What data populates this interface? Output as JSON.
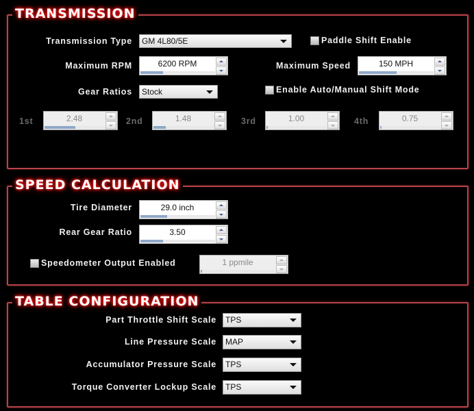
{
  "transmission": {
    "title": "TRANSMISSION",
    "type_label": "Transmission Type",
    "type_value": "GM 4L80/5E",
    "paddle_label": "Paddle Shift Enable",
    "paddle_checked": false,
    "max_rpm_label": "Maximum RPM",
    "max_rpm_value": "6200 RPM",
    "max_rpm_bar": 0.3,
    "max_speed_label": "Maximum Speed",
    "max_speed_value": "150 MPH",
    "max_speed_bar": 0.5,
    "gear_ratios_label": "Gear Ratios",
    "gear_ratios_value": "Stock",
    "auto_manual_label": "Enable Auto/Manual Shift Mode",
    "auto_manual_checked": false,
    "gears": [
      {
        "label": "1st",
        "value": "2.48",
        "bar": 0.5
      },
      {
        "label": "2nd",
        "value": "1.48",
        "bar": 0.2
      },
      {
        "label": "3rd",
        "value": "1.00",
        "bar": 0.02
      },
      {
        "label": "4th",
        "value": "0.75",
        "bar": 0.01
      }
    ]
  },
  "speed": {
    "title": "SPEED CALCULATION",
    "tire_label": "Tire Diameter",
    "tire_value": "29.0 inch",
    "tire_bar": 0.35,
    "rear_label": "Rear Gear Ratio",
    "rear_value": "3.50",
    "rear_bar": 0.3,
    "speedo_label": "Speedometer Output Enabled",
    "speedo_checked": false,
    "ppm_value": "1 ppmile",
    "ppm_bar": 0.01
  },
  "table": {
    "title": "TABLE CONFIGURATION",
    "rows": [
      {
        "label": "Part Throttle Shift Scale",
        "value": "TPS"
      },
      {
        "label": "Line Pressure Scale",
        "value": "MAP"
      },
      {
        "label": "Accumulator Pressure Scale",
        "value": "TPS"
      },
      {
        "label": "Torque Converter Lockup Scale",
        "value": "TPS"
      }
    ]
  }
}
